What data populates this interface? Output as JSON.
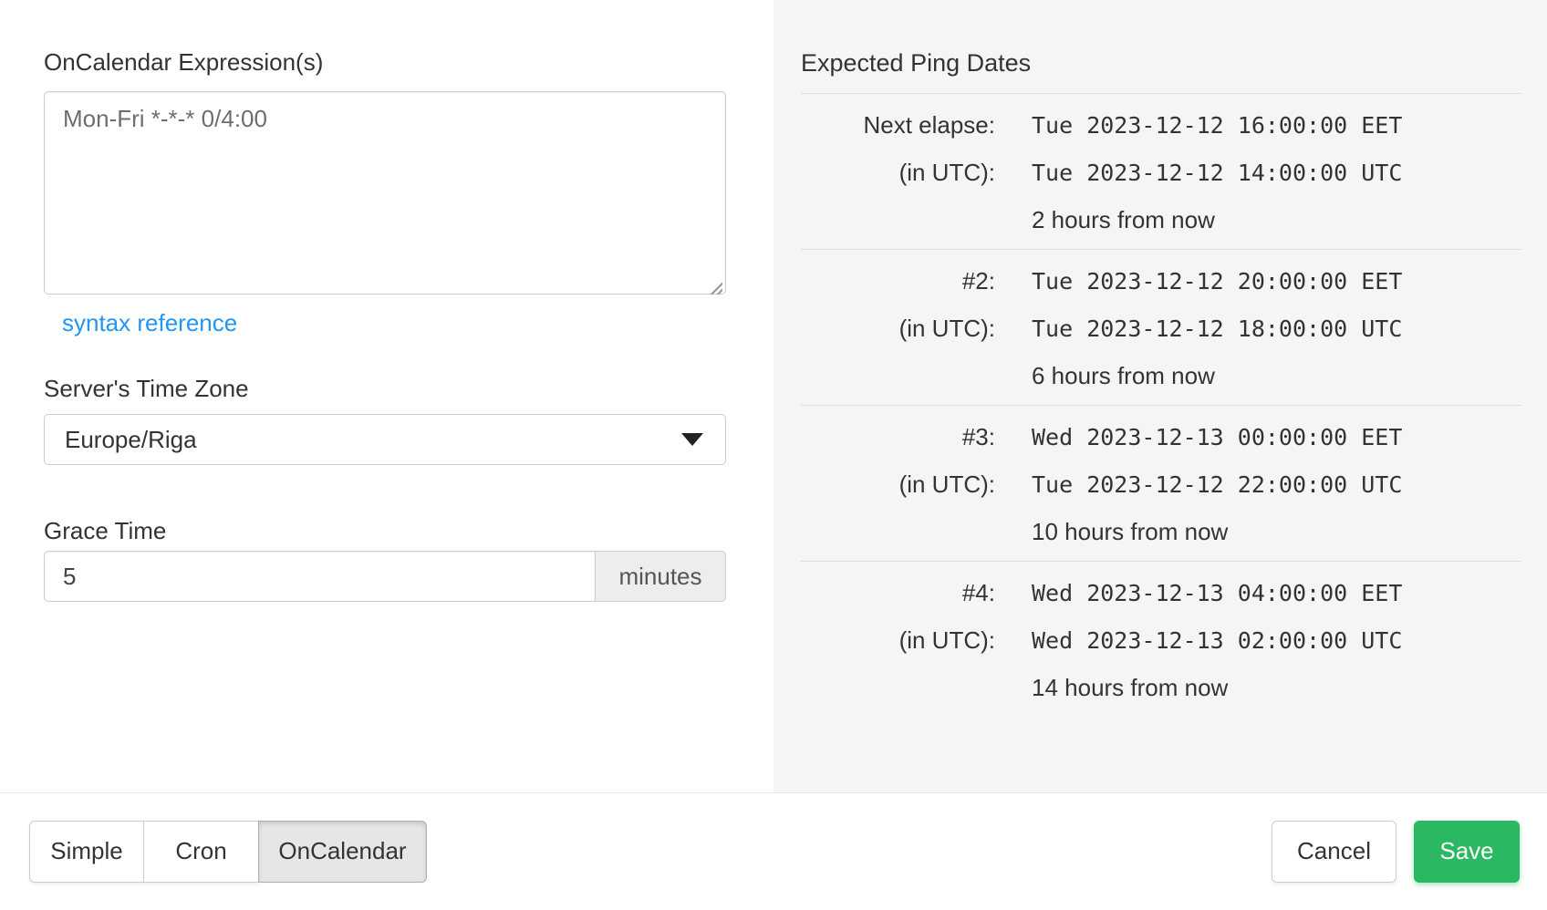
{
  "form": {
    "oncalendar_label": "OnCalendar Expression(s)",
    "oncalendar_value": "Mon-Fri *-*-* 0/4:00",
    "syntax_reference": "syntax reference",
    "timezone_label": "Server's Time Zone",
    "timezone_value": "Europe/Riga",
    "grace_label": "Grace Time",
    "grace_value": "5",
    "grace_unit": "minutes"
  },
  "ping_panel": {
    "title": "Expected Ping Dates",
    "rows": [
      {
        "label": "Next elapse:",
        "local": "Tue 2023-12-12 16:00:00 EET",
        "utc_label": "(in UTC):",
        "utc": "Tue 2023-12-12 14:00:00 UTC",
        "relative": "2 hours from now"
      },
      {
        "label": "#2:",
        "local": "Tue 2023-12-12 20:00:00 EET",
        "utc_label": "(in UTC):",
        "utc": "Tue 2023-12-12 18:00:00 UTC",
        "relative": "6 hours from now"
      },
      {
        "label": "#3:",
        "local": "Wed 2023-12-13 00:00:00 EET",
        "utc_label": "(in UTC):",
        "utc": "Tue 2023-12-12 22:00:00 UTC",
        "relative": "10 hours from now"
      },
      {
        "label": "#4:",
        "local": "Wed 2023-12-13 04:00:00 EET",
        "utc_label": "(in UTC):",
        "utc": "Wed 2023-12-13 02:00:00 UTC",
        "relative": "14 hours from now"
      }
    ]
  },
  "footer": {
    "tabs": [
      {
        "label": "Simple",
        "active": false
      },
      {
        "label": "Cron",
        "active": false
      },
      {
        "label": "OnCalendar",
        "active": true
      }
    ],
    "cancel_label": "Cancel",
    "save_label": "Save"
  },
  "colors": {
    "accent_green": "#2ab862",
    "link_blue": "#2196f3",
    "panel_bg": "#f5f5f5",
    "active_tab_bg": "#e6e6e6"
  }
}
